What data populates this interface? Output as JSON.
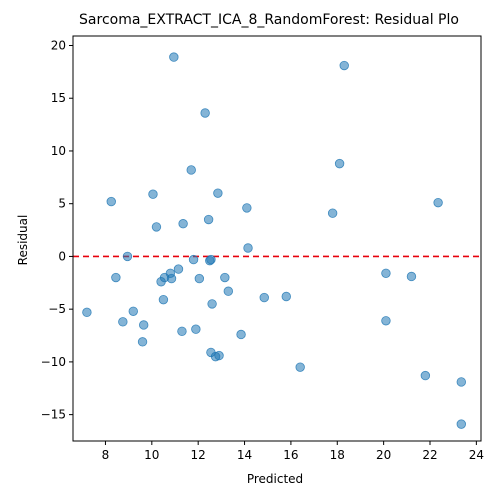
{
  "chart_data": {
    "type": "scatter",
    "title": "Sarcoma_EXTRACT_ICA_8_RandomForest: Residual Plo",
    "xlabel": "Predicted",
    "ylabel": "Residual",
    "xlim": [
      6.6,
      24.2
    ],
    "ylim": [
      -17.5,
      20.9
    ],
    "xticks": [
      8,
      10,
      12,
      14,
      16,
      18,
      20,
      22,
      24
    ],
    "yticks": [
      -15,
      -10,
      -5,
      0,
      5,
      10,
      15,
      20
    ],
    "grid": false,
    "reference_line": {
      "y": 0,
      "style": "dashed",
      "color": "#e8000b"
    },
    "point_color": "#1f77b4",
    "points": [
      [
        7.2,
        -5.3
      ],
      [
        8.25,
        5.2
      ],
      [
        8.45,
        -2.0
      ],
      [
        8.75,
        -6.2
      ],
      [
        8.95,
        0.0
      ],
      [
        9.2,
        -5.2
      ],
      [
        9.6,
        -8.1
      ],
      [
        9.65,
        -6.5
      ],
      [
        10.05,
        5.9
      ],
      [
        10.2,
        2.8
      ],
      [
        10.4,
        -2.4
      ],
      [
        10.5,
        -4.1
      ],
      [
        10.55,
        -2.0
      ],
      [
        10.8,
        -1.6
      ],
      [
        10.85,
        -2.1
      ],
      [
        10.95,
        18.9
      ],
      [
        11.15,
        -1.2
      ],
      [
        11.3,
        -7.1
      ],
      [
        11.35,
        3.1
      ],
      [
        11.7,
        8.2
      ],
      [
        11.8,
        -0.3
      ],
      [
        11.9,
        -6.9
      ],
      [
        12.05,
        -2.1
      ],
      [
        12.3,
        13.6
      ],
      [
        12.45,
        3.5
      ],
      [
        12.5,
        -0.4
      ],
      [
        12.55,
        -0.3
      ],
      [
        12.55,
        -9.1
      ],
      [
        12.6,
        -4.5
      ],
      [
        12.75,
        -9.5
      ],
      [
        12.85,
        6.0
      ],
      [
        12.9,
        -9.4
      ],
      [
        13.15,
        -2.0
      ],
      [
        13.3,
        -3.3
      ],
      [
        13.85,
        -7.4
      ],
      [
        14.1,
        4.6
      ],
      [
        14.15,
        0.8
      ],
      [
        14.85,
        -3.9
      ],
      [
        15.8,
        -3.8
      ],
      [
        16.4,
        -10.5
      ],
      [
        17.8,
        4.1
      ],
      [
        18.1,
        8.8
      ],
      [
        18.3,
        18.1
      ],
      [
        20.1,
        -1.6
      ],
      [
        20.1,
        -6.1
      ],
      [
        21.2,
        -1.9
      ],
      [
        21.8,
        -11.3
      ],
      [
        22.35,
        5.1
      ],
      [
        23.35,
        -11.9
      ],
      [
        23.35,
        -15.9
      ]
    ]
  }
}
